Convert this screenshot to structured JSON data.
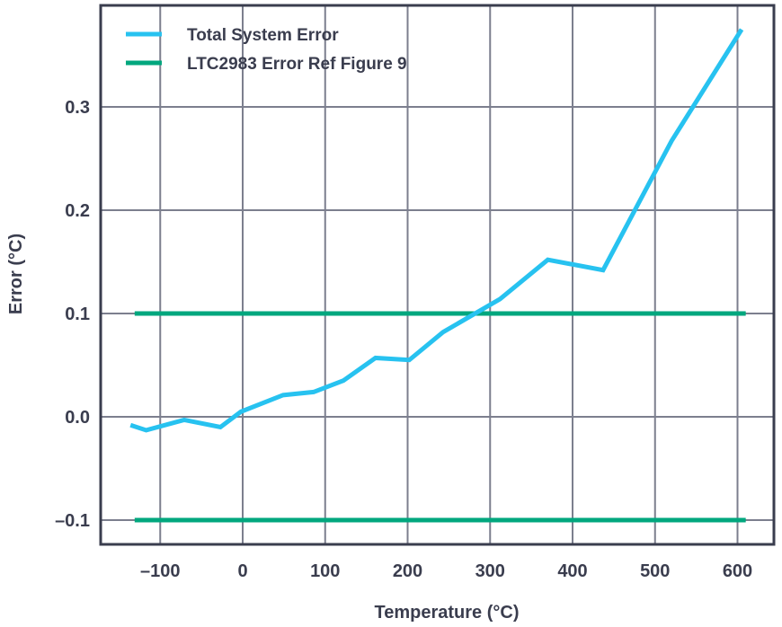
{
  "chart_data": {
    "type": "line",
    "title": "",
    "xlabel": "Temperature (°C)",
    "ylabel": "Error (°C)",
    "xlim": [
      -172,
      645
    ],
    "ylim": [
      -0.124,
      0.398
    ],
    "xticks": [
      -100,
      0,
      100,
      200,
      300,
      400,
      500,
      600
    ],
    "xtick_labels": [
      "–100",
      "0",
      "100",
      "200",
      "300",
      "400",
      "500",
      "600"
    ],
    "yticks": [
      -0.1,
      0.0,
      0.1,
      0.2,
      0.3
    ],
    "ytick_labels": [
      "–0.1",
      "0.0",
      "0.1",
      "0.2",
      "0.3"
    ],
    "grid": true,
    "legend_position": "top-left",
    "series": [
      {
        "name": "Total System Error",
        "color": "#27c2f0",
        "x": [
          -136,
          -117,
          -71,
          -27,
          -2,
          49,
          86,
          122,
          161,
          202,
          243,
          312,
          370,
          437,
          520,
          605
        ],
        "y": [
          -0.008,
          -0.013,
          -0.003,
          -0.01,
          0.005,
          0.021,
          0.024,
          0.035,
          0.057,
          0.055,
          0.082,
          0.114,
          0.152,
          0.142,
          0.267,
          0.375
        ]
      },
      {
        "name": "LTC2983 Error Ref Figure 9",
        "color": "#00a77e",
        "x": [
          -131,
          610
        ],
        "y": [
          0.1,
          0.1
        ],
        "mirror_y": [
          -0.1,
          -0.1
        ]
      }
    ]
  }
}
